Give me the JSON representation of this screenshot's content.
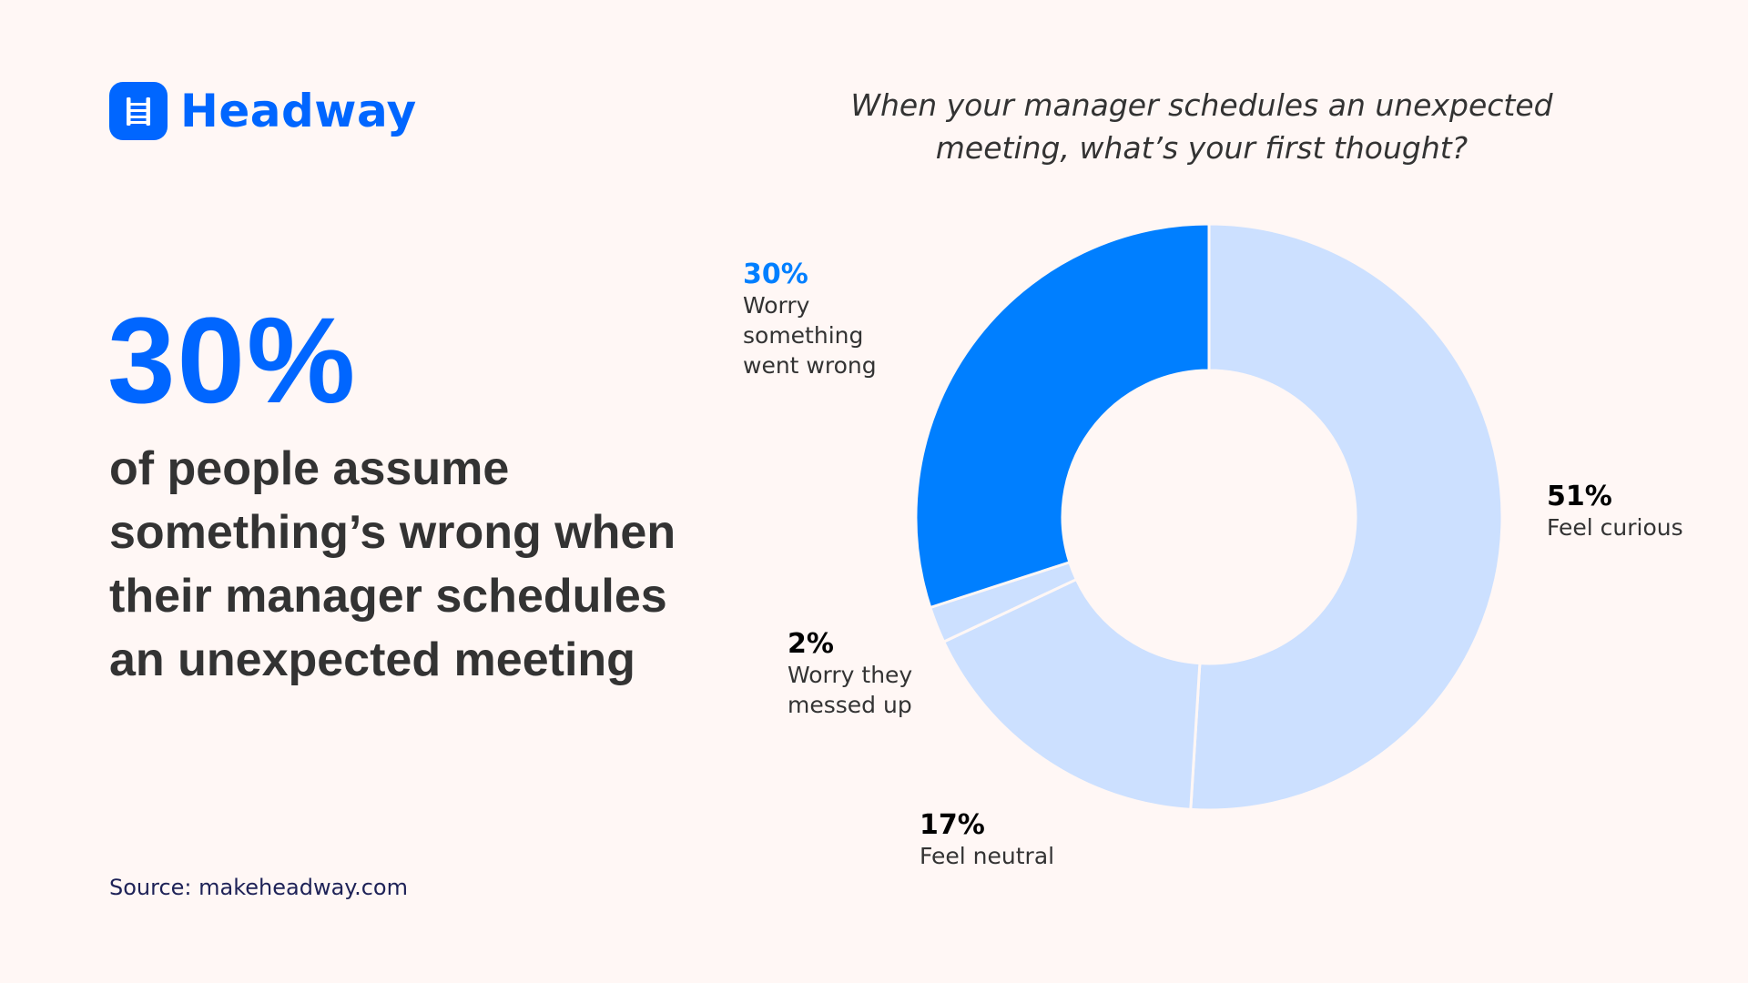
{
  "brand": {
    "name": "Headway",
    "icon": "ladder-icon",
    "color": "#0066FF"
  },
  "hero": {
    "stat": "30%",
    "lines": [
      "of people assume",
      "something’s wrong when",
      "their manager schedules",
      "an unexpected meeting"
    ]
  },
  "source": "Source: makeheadway.com",
  "colors": {
    "background": "#FFF7F5",
    "highlight": "#007FFF",
    "muted": "#CCE0FF",
    "text": "#333333",
    "source_text": "#1E2257"
  },
  "chart_data": {
    "type": "pie",
    "variant": "donut",
    "title": "When your manager schedules an unexpected meeting, what’s your first thought?",
    "title_lines": [
      "When your manager schedules an unexpected",
      "meeting, what’s your first thought?"
    ],
    "start_angle_deg": 0,
    "direction": "clockwise",
    "slices": [
      {
        "label": "Feel curious",
        "label_lines": [
          "Feel curious"
        ],
        "value": 51,
        "display": "51%",
        "color": "#CCE0FF",
        "highlight": false
      },
      {
        "label": "Feel neutral",
        "label_lines": [
          "Feel neutral"
        ],
        "value": 17,
        "display": "17%",
        "color": "#CCE0FF",
        "highlight": false
      },
      {
        "label": "Worry they messed up",
        "label_lines": [
          "Worry they",
          "messed up"
        ],
        "value": 2,
        "display": "2%",
        "color": "#CCE0FF",
        "highlight": false
      },
      {
        "label": "Worry something went wrong",
        "label_lines": [
          "Worry",
          "something",
          "went wrong"
        ],
        "value": 30,
        "display": "30%",
        "color": "#007FFF",
        "highlight": true
      }
    ]
  }
}
